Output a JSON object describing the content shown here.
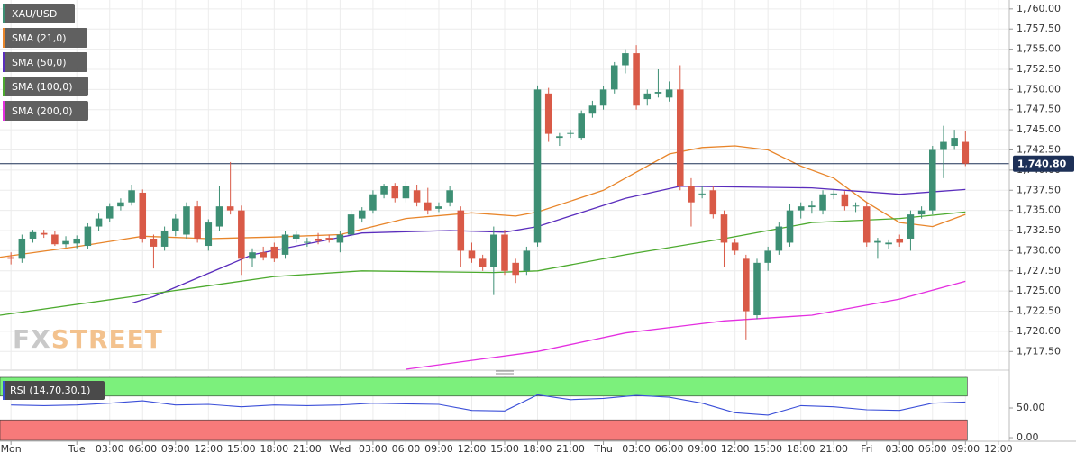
{
  "chart_data": {
    "type": "candlestick",
    "symbol": "XAU/USD",
    "symbol_color": "#3d8f74",
    "x": [
      -6,
      -5,
      -4,
      -3,
      -2,
      -1,
      0,
      1,
      2,
      3,
      4,
      5,
      6,
      7,
      8,
      9,
      10,
      11,
      12,
      13,
      14,
      15,
      16,
      17,
      18,
      19,
      20,
      21,
      22,
      23,
      24,
      25,
      26,
      27,
      28,
      29,
      30,
      31,
      32,
      33,
      34,
      35,
      36,
      37,
      38,
      39,
      40,
      41,
      42,
      43,
      44,
      45,
      46,
      47,
      48,
      49,
      50,
      51,
      52,
      53,
      54,
      55,
      56,
      57,
      58,
      59,
      60,
      61,
      62,
      63,
      64,
      65,
      66,
      67,
      68,
      69,
      70,
      71,
      72,
      73,
      74,
      75,
      76,
      77,
      78,
      79,
      80,
      81
    ],
    "candles": [
      [
        1729.2,
        1729.8,
        1728.3,
        1729.0
      ],
      [
        1729.0,
        1732.0,
        1728.5,
        1731.5
      ],
      [
        1731.5,
        1732.6,
        1731.0,
        1732.3
      ],
      [
        1732.2,
        1732.6,
        1731.6,
        1732.0
      ],
      [
        1732.0,
        1732.4,
        1730.6,
        1730.8
      ],
      [
        1730.8,
        1731.8,
        1730.4,
        1731.2
      ],
      [
        1730.9,
        1731.9,
        1730.3,
        1731.5
      ],
      [
        1730.6,
        1733.4,
        1730.2,
        1733.0
      ],
      [
        1733.0,
        1734.6,
        1732.5,
        1734.0
      ],
      [
        1734.0,
        1735.9,
        1733.6,
        1735.5
      ],
      [
        1735.5,
        1736.5,
        1735.0,
        1736.0
      ],
      [
        1736.0,
        1738.2,
        1735.6,
        1737.5
      ],
      [
        1737.2,
        1737.6,
        1731.0,
        1731.5
      ],
      [
        1731.5,
        1732.0,
        1727.8,
        1730.5
      ],
      [
        1730.5,
        1733.0,
        1730.0,
        1732.5
      ],
      [
        1732.5,
        1734.5,
        1731.8,
        1734.0
      ],
      [
        1732.0,
        1736.0,
        1731.5,
        1735.5
      ],
      [
        1735.5,
        1736.2,
        1731.0,
        1731.5
      ],
      [
        1730.6,
        1733.9,
        1730.0,
        1733.5
      ],
      [
        1733.0,
        1738.0,
        1732.5,
        1735.5
      ],
      [
        1735.5,
        1741.0,
        1734.5,
        1735.0
      ],
      [
        1735.0,
        1735.6,
        1727.0,
        1729.0
      ],
      [
        1729.0,
        1730.3,
        1728.0,
        1729.8
      ],
      [
        1729.8,
        1730.5,
        1728.8,
        1729.2
      ],
      [
        1730.5,
        1731.0,
        1728.6,
        1729.0
      ],
      [
        1729.5,
        1732.5,
        1729.0,
        1732.0
      ],
      [
        1731.5,
        1732.5,
        1731.0,
        1732.0
      ],
      [
        1731.0,
        1731.6,
        1730.5,
        1731.1
      ],
      [
        1731.5,
        1732.2,
        1730.8,
        1731.2
      ],
      [
        1731.6,
        1732.0,
        1731.0,
        1731.4
      ],
      [
        1731.0,
        1732.5,
        1729.8,
        1732.0
      ],
      [
        1732.0,
        1735.0,
        1731.5,
        1734.5
      ],
      [
        1734.0,
        1735.4,
        1733.5,
        1735.0
      ],
      [
        1735.0,
        1737.5,
        1734.6,
        1737.0
      ],
      [
        1737.0,
        1738.3,
        1736.5,
        1738.0
      ],
      [
        1738.0,
        1738.4,
        1736.0,
        1736.5
      ],
      [
        1736.5,
        1738.6,
        1736.0,
        1738.0
      ],
      [
        1737.5,
        1738.2,
        1735.5,
        1736.0
      ],
      [
        1736.0,
        1737.8,
        1734.5,
        1735.0
      ],
      [
        1735.2,
        1736.0,
        1734.8,
        1735.5
      ],
      [
        1736.0,
        1738.0,
        1735.5,
        1737.5
      ],
      [
        1735.0,
        1735.5,
        1728.0,
        1730.0
      ],
      [
        1730.0,
        1731.0,
        1728.5,
        1729.0
      ],
      [
        1729.0,
        1729.5,
        1727.5,
        1728.0
      ],
      [
        1728.0,
        1733.0,
        1724.5,
        1732.0
      ],
      [
        1732.0,
        1732.6,
        1727.0,
        1727.5
      ],
      [
        1728.5,
        1729.0,
        1726.0,
        1727.0
      ],
      [
        1727.5,
        1730.5,
        1727.0,
        1730.0
      ],
      [
        1731.0,
        1750.5,
        1730.5,
        1750.0
      ],
      [
        1749.5,
        1750.2,
        1743.5,
        1744.5
      ],
      [
        1744.0,
        1744.6,
        1743.0,
        1744.2
      ],
      [
        1744.5,
        1745.0,
        1744.0,
        1744.6
      ],
      [
        1744.0,
        1747.4,
        1743.8,
        1747.0
      ],
      [
        1747.0,
        1748.6,
        1746.5,
        1748.0
      ],
      [
        1748.0,
        1750.4,
        1747.5,
        1750.0
      ],
      [
        1750.0,
        1753.4,
        1749.5,
        1753.0
      ],
      [
        1753.0,
        1755.0,
        1752.0,
        1754.5
      ],
      [
        1754.5,
        1755.5,
        1747.5,
        1748.0
      ],
      [
        1748.8,
        1750.0,
        1748.0,
        1749.5
      ],
      [
        1749.5,
        1752.5,
        1749.0,
        1749.7
      ],
      [
        1749.0,
        1751.0,
        1748.5,
        1750.0
      ],
      [
        1750.0,
        1753.0,
        1737.5,
        1738.0
      ],
      [
        1738.0,
        1739.0,
        1733.0,
        1736.0
      ],
      [
        1737.0,
        1738.0,
        1736.5,
        1737.1
      ],
      [
        1737.5,
        1738.0,
        1734.0,
        1734.5
      ],
      [
        1734.5,
        1735.0,
        1728.0,
        1731.0
      ],
      [
        1731.0,
        1731.5,
        1729.5,
        1730.0
      ],
      [
        1729.0,
        1729.5,
        1719.0,
        1722.5
      ],
      [
        1722.0,
        1729.0,
        1721.5,
        1728.5
      ],
      [
        1728.5,
        1730.5,
        1727.5,
        1730.0
      ],
      [
        1730.0,
        1733.5,
        1729.5,
        1733.0
      ],
      [
        1731.0,
        1735.8,
        1730.5,
        1735.0
      ],
      [
        1735.0,
        1736.0,
        1734.0,
        1735.5
      ],
      [
        1735.4,
        1736.2,
        1734.6,
        1735.6
      ],
      [
        1735.0,
        1737.5,
        1734.5,
        1737.0
      ],
      [
        1737.0,
        1737.6,
        1736.4,
        1737.1
      ],
      [
        1737.0,
        1737.4,
        1735.0,
        1735.5
      ],
      [
        1735.5,
        1736.0,
        1734.8,
        1735.6
      ],
      [
        1735.5,
        1736.0,
        1730.5,
        1731.0
      ],
      [
        1731.0,
        1731.6,
        1729.0,
        1731.2
      ],
      [
        1730.8,
        1731.4,
        1730.2,
        1731.0
      ],
      [
        1731.5,
        1732.0,
        1730.5,
        1731.0
      ],
      [
        1731.5,
        1735.0,
        1730.0,
        1734.5
      ],
      [
        1734.5,
        1735.5,
        1734.0,
        1735.0
      ],
      [
        1735.0,
        1743.0,
        1734.5,
        1742.5
      ],
      [
        1742.5,
        1745.5,
        1739.0,
        1743.5
      ],
      [
        1743.0,
        1745.0,
        1742.5,
        1744.0
      ],
      [
        1743.5,
        1744.8,
        1740.5,
        1740.8
      ]
    ],
    "up_color": "#3d8f74",
    "down_color": "#d95a47",
    "xlim": [
      -7,
      85
    ],
    "xticks": [
      {
        "value": -6,
        "label": "Mon"
      },
      {
        "value": 0,
        "label": "Tue"
      },
      {
        "value": 3,
        "label": "03:00"
      },
      {
        "value": 6,
        "label": "06:00"
      },
      {
        "value": 9,
        "label": "09:00"
      },
      {
        "value": 12,
        "label": "12:00"
      },
      {
        "value": 15,
        "label": "15:00"
      },
      {
        "value": 18,
        "label": "18:00"
      },
      {
        "value": 21,
        "label": "21:00"
      },
      {
        "value": 24,
        "label": "Wed"
      },
      {
        "value": 27,
        "label": "03:00"
      },
      {
        "value": 30,
        "label": "06:00"
      },
      {
        "value": 33,
        "label": "09:00"
      },
      {
        "value": 36,
        "label": "12:00"
      },
      {
        "value": 39,
        "label": "15:00"
      },
      {
        "value": 42,
        "label": "18:00"
      },
      {
        "value": 45,
        "label": "21:00"
      },
      {
        "value": 48,
        "label": "Thu"
      },
      {
        "value": 51,
        "label": "03:00"
      },
      {
        "value": 54,
        "label": "06:00"
      },
      {
        "value": 57,
        "label": "09:00"
      },
      {
        "value": 60,
        "label": "12:00"
      },
      {
        "value": 63,
        "label": "15:00"
      },
      {
        "value": 66,
        "label": "18:00"
      },
      {
        "value": 69,
        "label": "21:00"
      },
      {
        "value": 72,
        "label": "Fri"
      },
      {
        "value": 75,
        "label": "03:00"
      },
      {
        "value": 78,
        "label": "06:00"
      },
      {
        "value": 81,
        "label": "09:00"
      },
      {
        "value": 84,
        "label": "12:00"
      }
    ],
    "ylim": [
      1715.3,
      1761.1
    ],
    "yticks": [
      {
        "value": 1717.5,
        "label": "1,717.50"
      },
      {
        "value": 1720,
        "label": "1,720.00"
      },
      {
        "value": 1722.5,
        "label": "1,722.50"
      },
      {
        "value": 1725,
        "label": "1,725.00"
      },
      {
        "value": 1727.5,
        "label": "1,727.50"
      },
      {
        "value": 1730,
        "label": "1,730.00"
      },
      {
        "value": 1732.5,
        "label": "1,732.50"
      },
      {
        "value": 1735,
        "label": "1,735.00"
      },
      {
        "value": 1737.5,
        "label": "1,737.50"
      },
      {
        "value": 1740,
        "label": "1,740.00"
      },
      {
        "value": 1742.5,
        "label": "1,742.50"
      },
      {
        "value": 1745,
        "label": "1,745.00"
      },
      {
        "value": 1747.5,
        "label": "1,747.50"
      },
      {
        "value": 1750,
        "label": "1,750.00"
      },
      {
        "value": 1752.5,
        "label": "1,752.50"
      },
      {
        "value": 1755,
        "label": "1,755.00"
      },
      {
        "value": 1757.5,
        "label": "1,757.50"
      },
      {
        "value": 1760,
        "label": "1,760.00"
      }
    ],
    "grid": true,
    "last_price": {
      "value": 1740.8,
      "label": "1,740.80"
    },
    "last_price_color": "#1d3057",
    "series": [
      {
        "name": "SMA (21,0)",
        "color": "#e8852a",
        "x": [
          -7,
          0,
          6,
          12,
          18,
          24,
          30,
          36,
          40,
          42,
          48,
          54,
          57,
          60,
          63,
          66,
          69,
          72,
          75,
          78,
          81
        ],
        "values": [
          1729.2,
          1730.5,
          1731.8,
          1731.5,
          1731.7,
          1732,
          1734,
          1734.7,
          1734.3,
          1734.8,
          1737.5,
          1742,
          1742.8,
          1743,
          1742.5,
          1740.5,
          1739,
          1736,
          1733.5,
          1733,
          1734.5
        ]
      },
      {
        "name": "SMA (50,0)",
        "color": "#5a2dbd",
        "x": [
          5,
          7,
          16,
          26,
          34,
          39,
          42,
          50,
          55,
          67,
          75,
          81
        ],
        "values": [
          1723.5,
          1724.3,
          1729.5,
          1732.2,
          1732.5,
          1732.3,
          1733,
          1736.5,
          1738,
          1737.8,
          1737,
          1737.6
        ]
      },
      {
        "name": "SMA (100,0)",
        "color": "#4caa2e",
        "x": [
          -7,
          5,
          18,
          26,
          38,
          42,
          50,
          59,
          67,
          75,
          81
        ],
        "values": [
          1722,
          1724.3,
          1726.8,
          1727.5,
          1727.3,
          1727.5,
          1729.5,
          1731.5,
          1733.5,
          1734,
          1734.8
        ]
      },
      {
        "name": "SMA (200,0)",
        "color": "#e42fe0",
        "x": [
          30,
          42,
          50,
          59,
          67,
          75,
          81
        ],
        "values": [
          1715.3,
          1717.5,
          1719.8,
          1721.3,
          1722,
          1724,
          1726.2
        ]
      }
    ],
    "rsi": {
      "name": "RSI (14,70,30,1)",
      "color": "#3b4fd8",
      "x": [
        -6,
        -3,
        0,
        3,
        6,
        9,
        12,
        15,
        18,
        21,
        24,
        27,
        30,
        33,
        36,
        39,
        42,
        45,
        48,
        51,
        54,
        57,
        60,
        63,
        66,
        69,
        72,
        75,
        78,
        81
      ],
      "values": [
        55,
        54,
        55,
        58,
        62,
        55,
        56,
        52,
        55,
        54,
        55,
        58,
        57,
        56,
        46,
        45,
        72,
        64,
        66,
        71,
        68,
        58,
        42,
        38,
        54,
        52,
        47,
        46,
        58,
        60
      ],
      "ylim": [
        -6,
        103
      ],
      "yticks": [
        {
          "value": 0,
          "label": "0.00"
        },
        {
          "value": 50,
          "label": "50.00"
        }
      ],
      "overbought": 70,
      "oversold": 30,
      "overbought_color": "#7cf07c",
      "oversold_color": "#f77a7a"
    },
    "watermark": [
      "FX",
      "STREET"
    ]
  }
}
